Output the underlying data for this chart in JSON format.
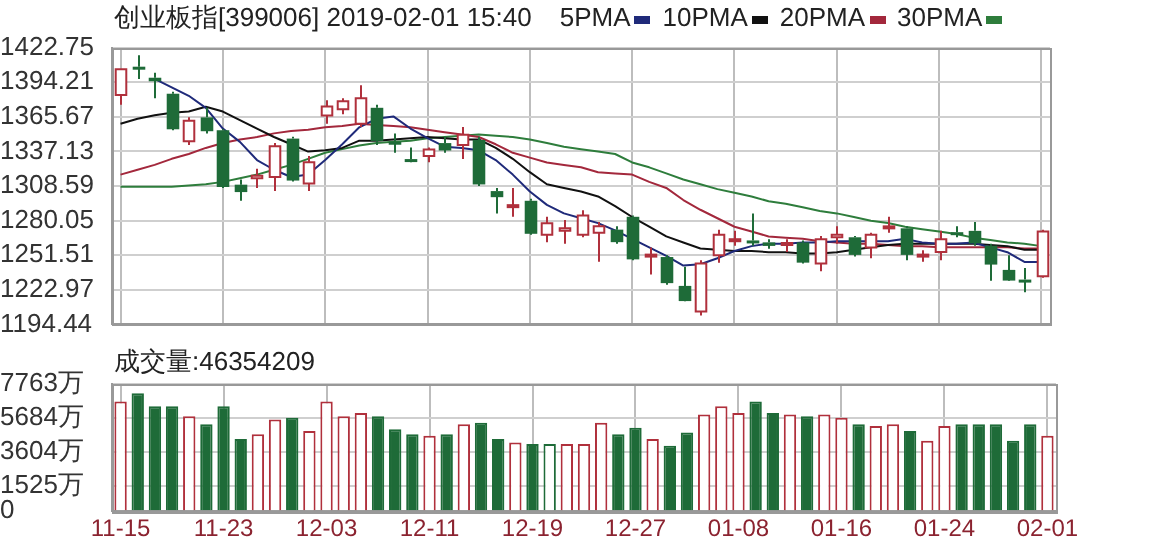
{
  "chart_data": [
    {
      "type": "candlestick",
      "title": "创业板指[399006] 2019-02-01 15:40",
      "legend": "top",
      "marker": "none",
      "line_style": "solid",
      "grid": true,
      "tick_labels": "y",
      "categories": [
        null,
        null,
        null,
        null,
        null,
        null,
        null,
        null,
        null,
        null,
        null,
        null,
        null,
        null,
        null,
        null,
        null,
        null,
        null,
        null,
        null,
        null,
        null,
        null,
        null,
        null,
        null,
        null,
        null,
        null,
        null,
        null,
        null,
        null,
        null,
        null,
        null,
        null,
        null,
        null,
        null,
        null,
        null,
        null,
        null,
        null,
        null,
        null,
        null,
        null,
        null,
        null,
        null,
        null,
        null
      ],
      "ylim": [
        1194.44,
        1422.75
      ],
      "yticks": [
        1194.44,
        1222.97,
        1251.51,
        1280.05,
        1308.59,
        1337.13,
        1365.67,
        1394.21,
        1422.75
      ],
      "ohlc": [
        [
          1383.6,
          1404.8,
          1375.7,
          1404.8
        ],
        [
          1407,
          1416.4,
          1396.9,
          1406
        ],
        [
          1397.9,
          1402.1,
          1381,
          1395.8
        ],
        [
          1384.7,
          1386.3,
          1354.6,
          1356.2
        ],
        [
          1345.6,
          1365.2,
          1342.4,
          1362.5
        ],
        [
          1365.2,
          1373.1,
          1351.9,
          1354.6
        ],
        [
          1354.6,
          1355.6,
          1307,
          1308.6
        ],
        [
          1309.7,
          1313.9,
          1296.4,
          1304.4
        ],
        [
          1314.9,
          1322.9,
          1307,
          1317
        ],
        [
          1316,
          1344,
          1304.4,
          1341.4
        ],
        [
          1347.7,
          1349.3,
          1312.3,
          1313.9
        ],
        [
          1310.7,
          1333.4,
          1304.4,
          1328.2
        ],
        [
          1366.7,
          1379.4,
          1359.9,
          1374.1
        ],
        [
          1372,
          1381,
          1367.8,
          1378.4
        ],
        [
          1359.9,
          1391.6,
          1357.2,
          1381
        ],
        [
          1373.1,
          1375.7,
          1342.4,
          1346.6
        ],
        [
          1345.1,
          1351.9,
          1336.1,
          1343.5
        ],
        [
          1330.8,
          1340.3,
          1328.2,
          1330.2
        ],
        [
          1333.4,
          1340.3,
          1328.2,
          1338.7
        ],
        [
          1344,
          1349.3,
          1336.1,
          1338.7
        ],
        [
          1342.4,
          1357.2,
          1330.8,
          1350.9
        ],
        [
          1346.6,
          1349.3,
          1308.6,
          1310.7
        ],
        [
          1304.4,
          1307,
          1285.9,
          1300.2
        ],
        [
          1291.2,
          1307,
          1283.2,
          1292.8
        ],
        [
          1296.4,
          1298,
          1268.4,
          1270
        ],
        [
          1268.4,
          1283.2,
          1262.1,
          1277.9
        ],
        [
          1271.6,
          1280.6,
          1261,
          1273.7
        ],
        [
          1268.4,
          1288.5,
          1266.3,
          1284.3
        ],
        [
          1270,
          1279,
          1246.2,
          1275.3
        ],
        [
          1272.6,
          1275.3,
          1261,
          1263.1
        ],
        [
          1283.2,
          1284.3,
          1247.3,
          1248.9
        ],
        [
          1250.5,
          1257.9,
          1235.7,
          1252
        ],
        [
          1250,
          1251.5,
          1227.2,
          1229.3
        ],
        [
          1226.2,
          1242,
          1213.5,
          1214.5
        ],
        [
          1205,
          1247.3,
          1201.8,
          1244.6
        ],
        [
          1251.5,
          1272.6,
          1245.2,
          1268.4
        ],
        [
          1263.1,
          1271.6,
          1259.4,
          1264.7
        ],
        [
          1263.7,
          1285.9,
          1259.4,
          1262.1
        ],
        [
          1262.1,
          1264.7,
          1256.8,
          1260
        ],
        [
          1260,
          1264.7,
          1254.2,
          1261.6
        ],
        [
          1262.1,
          1263.7,
          1244.6,
          1246.2
        ],
        [
          1244.6,
          1267.4,
          1238.3,
          1264.7
        ],
        [
          1266.3,
          1275.3,
          1261,
          1268.4
        ],
        [
          1266.3,
          1267.4,
          1250.5,
          1252.6
        ],
        [
          1257.9,
          1270,
          1248.9,
          1268.4
        ],
        [
          1273.7,
          1283.2,
          1270,
          1275.3
        ],
        [
          1273.7,
          1275.3,
          1247.3,
          1252.6
        ],
        [
          1250.5,
          1255.7,
          1246.2,
          1252
        ],
        [
          1254.2,
          1271.6,
          1247.3,
          1264.7
        ],
        [
          1270.5,
          1275.3,
          1266.3,
          1268.9
        ],
        [
          1271.6,
          1279,
          1259.4,
          1262.1
        ],
        [
          1259.4,
          1261,
          1230.4,
          1244.6
        ],
        [
          1239.4,
          1251.5,
          1230.4,
          1231.4
        ],
        [
          1231.4,
          1240.9,
          1220.9,
          1229.9
        ],
        [
          1234.1,
          1272.6,
          1233,
          1271.1
        ]
      ],
      "series": [
        {
          "name": "5PMA",
          "type": "line",
          "color": "#1f2a7a",
          "values": [
            null,
            null,
            1397,
            1390,
            1383,
            1373,
            1356,
            1345,
            1330,
            1322,
            1316,
            1318,
            1330,
            1343,
            1357,
            1364,
            1366,
            1356,
            1348,
            1341,
            1340,
            1338,
            1330,
            1318,
            1304,
            1293,
            1286,
            1282,
            1278,
            1272,
            1265,
            1258,
            1251,
            1243,
            1244,
            1249,
            1255,
            1259,
            1261,
            1261,
            1262,
            1262,
            1263,
            1263,
            1263,
            1263,
            1265,
            1262,
            1261,
            1261,
            1262,
            1258,
            1254,
            1246,
            1246
          ]
        },
        {
          "name": "10PMA",
          "type": "line",
          "color": "#111111",
          "values": [
            1360,
            1364,
            1367,
            1369,
            1370,
            1374,
            1370,
            1363,
            1356,
            1349,
            1343,
            1337,
            1338,
            1340,
            1346,
            1346,
            1347,
            1348,
            1349,
            1348,
            1347,
            1347,
            1340,
            1331,
            1320,
            1310,
            1307,
            1304,
            1300,
            1292,
            1283,
            1275,
            1267,
            1262,
            1257,
            1256,
            1255,
            1255,
            1254,
            1254,
            1253,
            1253,
            1254,
            1256,
            1258,
            1260,
            1261,
            1261,
            1261,
            1261,
            1261,
            1260,
            1259,
            1256,
            1256
          ]
        },
        {
          "name": "20PMA",
          "type": "line",
          "color": "#a3283c",
          "values": [
            1318,
            1322,
            1326,
            1331,
            1335,
            1340,
            1344,
            1347,
            1349,
            1352,
            1354,
            1355,
            1357,
            1358,
            1360,
            1359,
            1358,
            1357,
            1355,
            1353,
            1351,
            1349,
            1343,
            1336,
            1332,
            1328,
            1326,
            1324,
            1320,
            1319,
            1318,
            1312,
            1307,
            1297,
            1289,
            1282,
            1275,
            1271,
            1267,
            1266,
            1265,
            1263,
            1262,
            1261,
            1261,
            1260,
            1259,
            1259,
            1258,
            1258,
            1258,
            1258,
            1258,
            1257,
            1257
          ]
        },
        {
          "name": "30PMA",
          "type": "line",
          "color": "#2e7d3c",
          "values": [
            1308,
            1308,
            1308,
            1308,
            1309,
            1310,
            1312,
            1315,
            1318,
            1322,
            1326,
            1331,
            1336,
            1339,
            1342,
            1344,
            1345,
            1346,
            1348,
            1349,
            1350,
            1351,
            1350,
            1349,
            1347,
            1344,
            1341,
            1339,
            1337,
            1335,
            1328,
            1324,
            1319,
            1314,
            1310,
            1306,
            1303,
            1300,
            1296,
            1294,
            1291,
            1288,
            1286,
            1283,
            1280,
            1278,
            1275,
            1273,
            1271,
            1269,
            1266,
            1264,
            1262,
            1261,
            1259
          ]
        }
      ]
    },
    {
      "type": "bar",
      "title": "成交量:46354209",
      "grid": true,
      "categories": [
        "11-15",
        null,
        null,
        null,
        null,
        null,
        "11-23",
        null,
        null,
        null,
        null,
        null,
        "12-03",
        null,
        null,
        null,
        null,
        null,
        "12-11",
        null,
        null,
        null,
        null,
        null,
        "12-19",
        null,
        null,
        null,
        null,
        null,
        "12-27",
        null,
        null,
        null,
        null,
        null,
        "01-08",
        null,
        null,
        null,
        null,
        null,
        "01-16",
        null,
        null,
        null,
        null,
        null,
        "01-24",
        null,
        null,
        null,
        null,
        null,
        "02-01"
      ],
      "ylim": [
        0,
        7763
      ],
      "yticks": [
        0,
        {
          "value": 1525,
          "label": "1525万"
        },
        {
          "value": 3604,
          "label": "3604万"
        },
        {
          "value": 5684,
          "label": "5684万"
        },
        {
          "value": 7763,
          "label": "7763万"
        }
      ],
      "values": [
        6700,
        7200,
        6400,
        6400,
        5800,
        5300,
        6400,
        4400,
        4700,
        5600,
        5700,
        4900,
        6700,
        5800,
        6000,
        5800,
        5000,
        4700,
        4600,
        4700,
        5300,
        5400,
        4400,
        4200,
        4100,
        4100,
        4100,
        4100,
        5400,
        4700,
        5100,
        4400,
        4000,
        4800,
        5900,
        6400,
        6000,
        6700,
        6000,
        5900,
        5800,
        5900,
        5700,
        5300,
        5200,
        5300,
        4900,
        4300,
        5200,
        5300,
        5300,
        5300,
        4300,
        5300,
        4600
      ],
      "colors": [
        "#b0303c",
        "#1e6b38",
        "#1e6b38",
        "#1e6b38",
        "#b0303c",
        "#1e6b38",
        "#1e6b38",
        "#1e6b38",
        "#b0303c",
        "#b0303c",
        "#1e6b38",
        "#b0303c",
        "#b0303c",
        "#b0303c",
        "#b0303c",
        "#1e6b38",
        "#1e6b38",
        "#1e6b38",
        "#b0303c",
        "#1e6b38",
        "#b0303c",
        "#1e6b38",
        "#1e6b38",
        "#b0303c",
        "#1e6b38",
        "#1e6b38",
        "#b0303c",
        "#b0303c",
        "#b0303c",
        "#1e6b38",
        "#1e6b38",
        "#b0303c",
        "#1e6b38",
        "#1e6b38",
        "#b0303c",
        "#b0303c",
        "#b0303c",
        "#1e6b38",
        "#1e6b38",
        "#b0303c",
        "#1e6b38",
        "#b0303c",
        "#b0303c",
        "#1e6b38",
        "#b0303c",
        "#b0303c",
        "#1e6b38",
        "#b0303c",
        "#b0303c",
        "#1e6b38",
        "#1e6b38",
        "#1e6b38",
        "#1e6b38",
        "#1e6b38",
        "#b0303c"
      ]
    }
  ]
}
